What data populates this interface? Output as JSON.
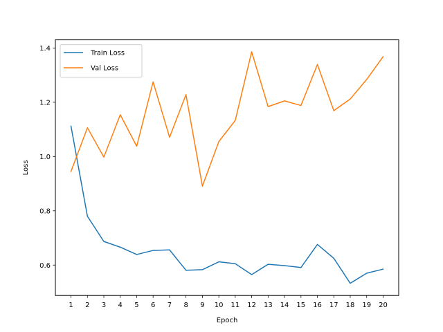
{
  "chart_data": {
    "type": "line",
    "title": "",
    "xlabel": "Epoch",
    "ylabel": "Loss",
    "x": [
      1,
      2,
      3,
      4,
      5,
      6,
      7,
      8,
      9,
      10,
      11,
      12,
      13,
      14,
      15,
      16,
      17,
      18,
      19,
      20
    ],
    "xticks": [
      1,
      2,
      3,
      4,
      5,
      6,
      7,
      8,
      9,
      10,
      11,
      12,
      13,
      14,
      15,
      16,
      17,
      18,
      19,
      20
    ],
    "yticks": [
      0.6,
      0.8,
      1.0,
      1.2,
      1.4
    ],
    "ytick_labels": [
      "0.6",
      "0.8",
      "1.0",
      "1.2",
      "1.4"
    ],
    "xlim": [
      0.05,
      20.95
    ],
    "ylim": [
      0.488,
      1.43
    ],
    "grid": false,
    "legend_position": "upper left",
    "series": [
      {
        "name": "Train Loss",
        "color": "#1f77b4",
        "values": [
          1.112,
          0.78,
          0.687,
          0.666,
          0.639,
          0.654,
          0.656,
          0.581,
          0.583,
          0.612,
          0.605,
          0.565,
          0.603,
          0.598,
          0.591,
          0.676,
          0.625,
          0.533,
          0.57,
          0.585
        ]
      },
      {
        "name": "Val Loss",
        "color": "#ff7f0e",
        "values": [
          0.945,
          1.106,
          0.998,
          1.154,
          1.038,
          1.275,
          1.071,
          1.228,
          0.891,
          1.055,
          1.133,
          1.386,
          1.184,
          1.205,
          1.188,
          1.339,
          1.169,
          1.212,
          1.284,
          1.368
        ]
      }
    ]
  }
}
